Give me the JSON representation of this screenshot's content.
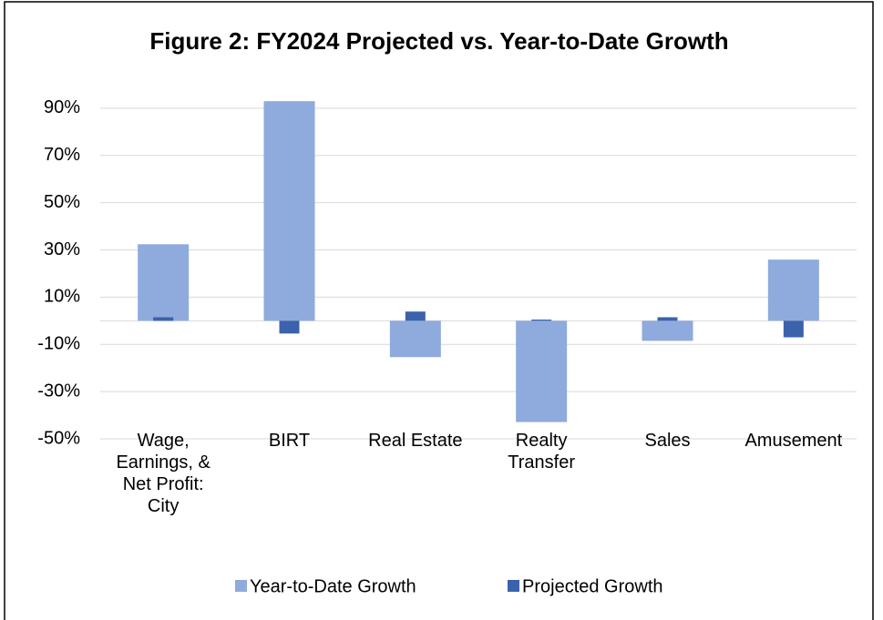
{
  "chart_data": {
    "type": "bar",
    "title": "Figure 2: FY2024 Projected vs. Year-to-Date Growth",
    "categories": [
      "Wage, Earnings, & Net Profit: City",
      "BIRT",
      "Real Estate",
      "Realty Transfer",
      "Sales",
      "Amusement"
    ],
    "series": [
      {
        "name": "Year-to-Date Growth",
        "color": "#8faadc",
        "values": [
          32.4,
          93,
          -15.4,
          -42.9,
          -8.5,
          25.9
        ]
      },
      {
        "name": "Projected Growth",
        "color": "#3b62ab",
        "values": [
          1.5,
          -5.4,
          3.9,
          0.5,
          1.5,
          -7
        ]
      }
    ],
    "ylim": [
      -50,
      100
    ],
    "yticks": [
      {
        "value": -50,
        "label": "-50%"
      },
      {
        "value": -30,
        "label": "-30%"
      },
      {
        "value": -10,
        "label": "-10%"
      },
      {
        "value": 10,
        "label": "10%"
      },
      {
        "value": 30,
        "label": "30%"
      },
      {
        "value": 50,
        "label": "50%"
      },
      {
        "value": 70,
        "label": "70%"
      },
      {
        "value": 90,
        "label": "90%"
      }
    ],
    "grid": true,
    "legend": "bottom"
  }
}
